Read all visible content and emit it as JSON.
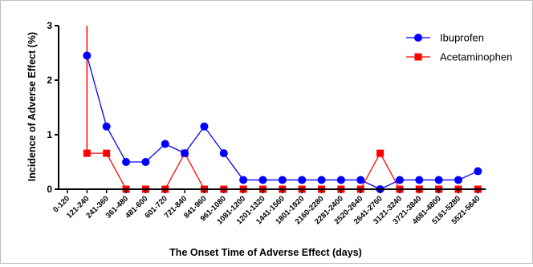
{
  "chart_data": {
    "type": "line",
    "title": "",
    "xlabel": "The Onset Time of Adverse Effect (days)",
    "ylabel": "Incidence of Adverse Effect (%)",
    "ylim": [
      0,
      3
    ],
    "yticks": [
      "0",
      "1",
      "2",
      "3"
    ],
    "categories": [
      "0-120",
      "121-240",
      "241-360",
      "361-480",
      "481-600",
      "601-720",
      "721-840",
      "841-960",
      "961-1080",
      "1081-1200",
      "1201-1320",
      "1441-1560",
      "1801-1920",
      "2160-2280",
      "2281-2400",
      "2520-2640",
      "2641-2760",
      "3121-3240",
      "3721-3840",
      "4681-4800",
      "5161-5280",
      "5521-5640"
    ],
    "legend_position": "top-right",
    "series": [
      {
        "name": "Ibuprofen",
        "color": "#0000ff",
        "marker": "circle",
        "values": [
          null,
          2.45,
          1.15,
          0.5,
          0.5,
          0.83,
          0.66,
          1.15,
          0.66,
          0.17,
          0.17,
          0.17,
          0.17,
          0.17,
          0.17,
          0.17,
          0.0,
          0.17,
          0.17,
          0.17,
          0.17,
          0.33
        ]
      },
      {
        "name": "Acetaminophen",
        "color": "#ff0000",
        "marker": "square",
        "peak_value": 3.0,
        "values": [
          null,
          0.66,
          0.66,
          0.0,
          0.0,
          0.0,
          0.66,
          0.0,
          0.0,
          0.0,
          0.0,
          0.0,
          0.0,
          0.0,
          0.0,
          0.0,
          0.66,
          0.0,
          0.0,
          0.0,
          0.0,
          0.0
        ]
      }
    ]
  }
}
